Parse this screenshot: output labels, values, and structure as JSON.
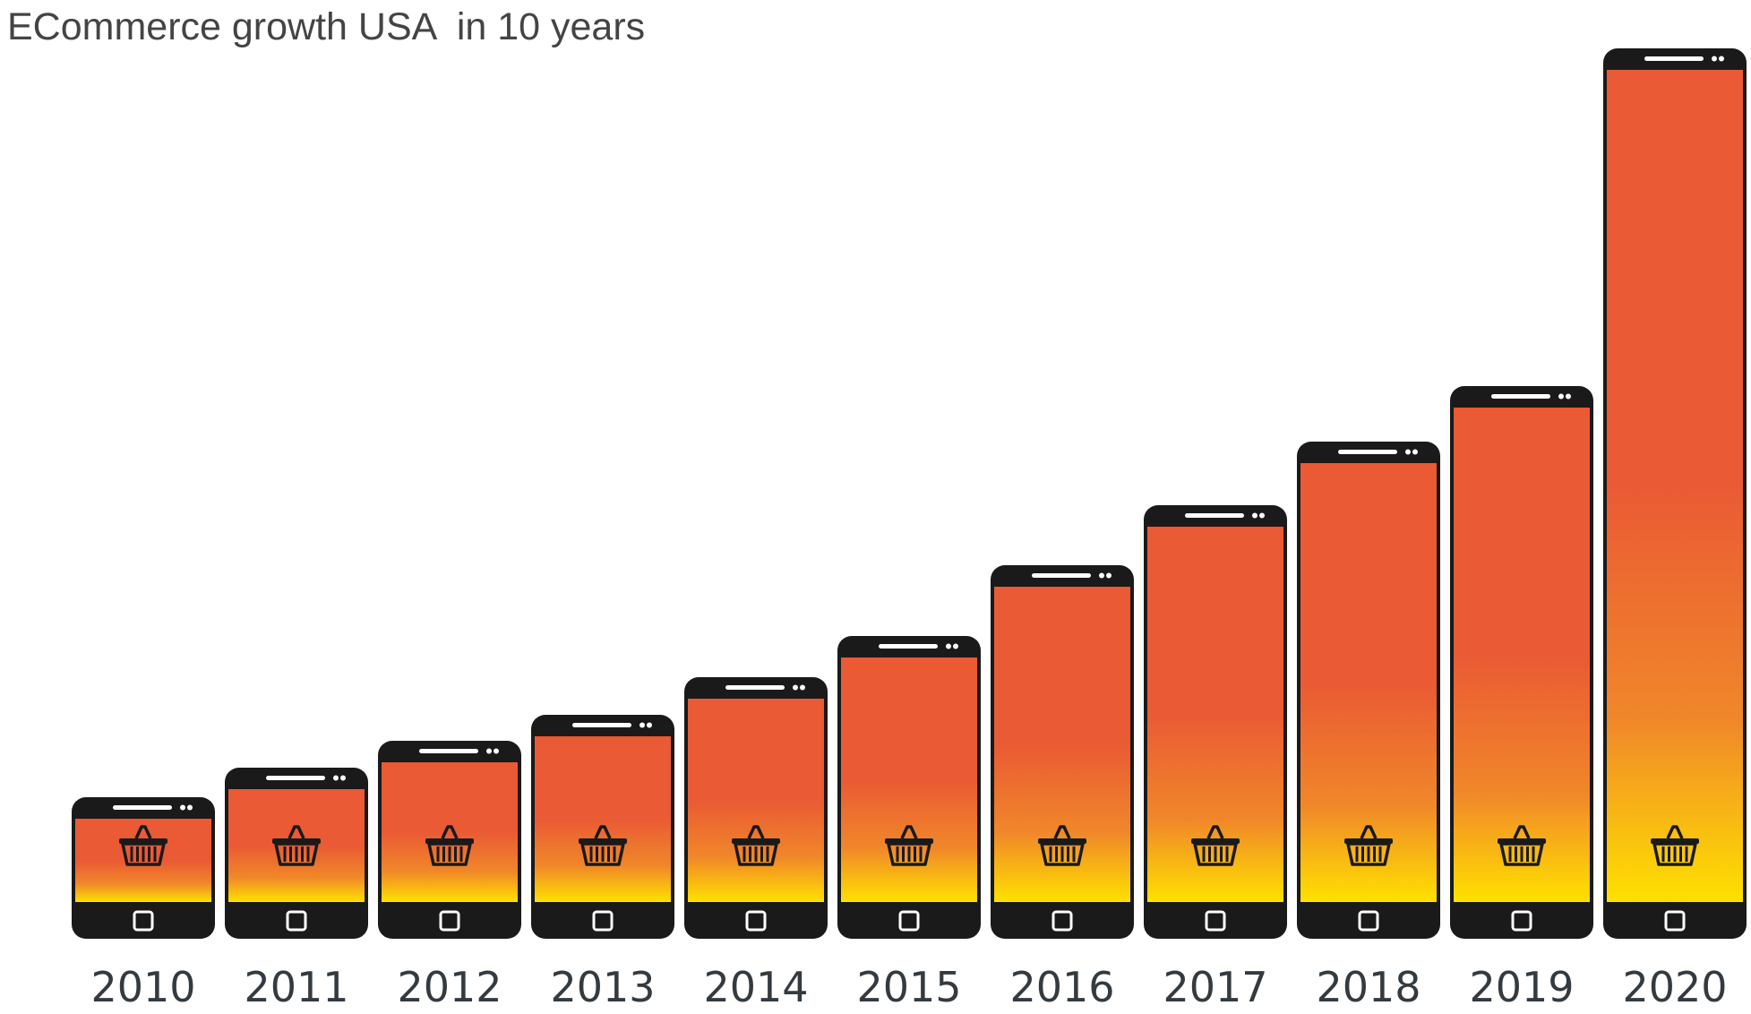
{
  "colors": {
    "phone_body": "#1a1a1a",
    "screen_top": "#ea5a34",
    "screen_mid": "#f0872a",
    "screen_bottom": "#ffe100",
    "label": "#333a40",
    "title": "#444444"
  },
  "chart_data": {
    "type": "bar",
    "title": "ECommerce growth USA  in 10 years",
    "xlabel": "",
    "ylabel": "",
    "categories": [
      "2010",
      "2011",
      "2012",
      "2013",
      "2014",
      "2015",
      "2016",
      "2017",
      "2018",
      "2019",
      "2020"
    ],
    "values": [
      158,
      191,
      221,
      250,
      292,
      338,
      417,
      484,
      555,
      617,
      994
    ],
    "ylim": [
      0,
      1000
    ],
    "grid": false,
    "legend": "none",
    "bar_style": "smartphone-shaped bars with shopping-basket icon",
    "icon": "shopping-basket-icon"
  }
}
